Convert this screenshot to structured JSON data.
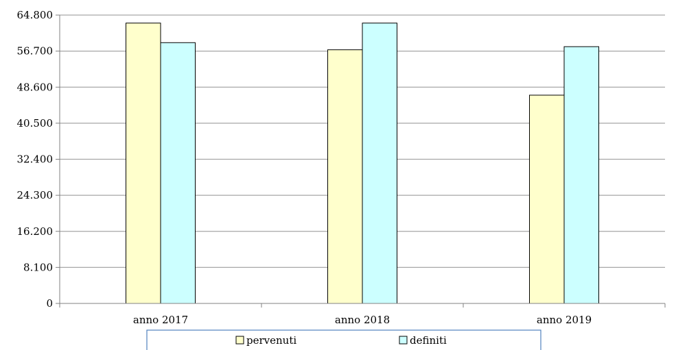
{
  "chart_data": {
    "type": "bar",
    "title": "",
    "xlabel": "",
    "ylabel": "",
    "categories": [
      "anno 2017",
      "anno 2018",
      "anno 2019"
    ],
    "series": [
      {
        "name": "pervenuti",
        "values": [
          63000,
          57000,
          46800
        ],
        "color": "#FFFFCC"
      },
      {
        "name": "definiti",
        "values": [
          58600,
          63000,
          57700
        ],
        "color": "#CCFFFF"
      }
    ],
    "ylim": [
      0,
      64800
    ],
    "yticks": [
      0,
      8100,
      16200,
      24300,
      32400,
      40500,
      48600,
      56700,
      64800
    ],
    "ytick_labels": [
      "0",
      "8.100",
      "16.200",
      "24.300",
      "32.400",
      "40.500",
      "48.600",
      "56.700",
      "64.800"
    ],
    "grid": true,
    "legend_position": "bottom",
    "colors": {
      "gridline": "#A6A6A6",
      "axis": "#808080",
      "bar_border": "#000000",
      "legend_border": "#4F81BD"
    }
  }
}
